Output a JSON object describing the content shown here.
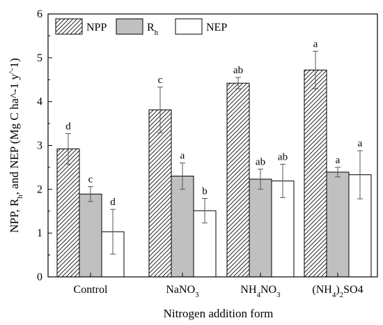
{
  "chart_data": {
    "type": "bar",
    "xlabel": "Nitrogen addition form",
    "ylabel": "NPP, R_h, and NEP (Mg C ha^-1 yr^-1)",
    "ylim": [
      0,
      6
    ],
    "yticks": [
      0,
      1,
      2,
      3,
      4,
      5,
      6
    ],
    "grid": false,
    "legend_position": "top-left",
    "categories": [
      "Control",
      "NaNO3",
      "NH4NO3",
      "(NH4)2SO4"
    ],
    "series": [
      {
        "name": "NPP",
        "fill": "hatch",
        "values": [
          2.92,
          3.81,
          4.42,
          4.72
        ],
        "errors": [
          0.35,
          0.52,
          0.13,
          0.43
        ],
        "letters": [
          "d",
          "c",
          "ab",
          "a"
        ]
      },
      {
        "name": "Rh",
        "fill": "#c0c0c0",
        "values": [
          1.89,
          2.3,
          2.23,
          2.39
        ],
        "errors": [
          0.17,
          0.3,
          0.23,
          0.11
        ],
        "letters": [
          "c",
          "a",
          "ab",
          "a"
        ]
      },
      {
        "name": "NEP",
        "fill": "#ffffff",
        "values": [
          1.03,
          1.51,
          2.19,
          2.33
        ],
        "errors": [
          0.51,
          0.28,
          0.38,
          0.55
        ],
        "letters": [
          "d",
          "b",
          "ab",
          "a"
        ]
      }
    ]
  }
}
